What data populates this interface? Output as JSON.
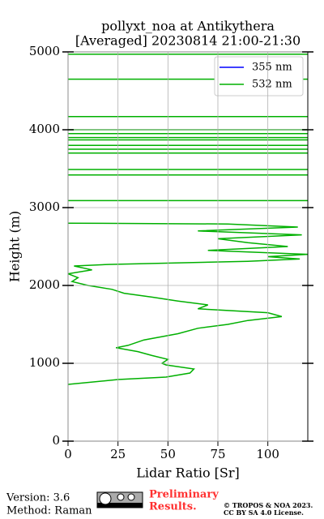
{
  "chart_data": {
    "type": "profile",
    "title": [
      "pollyxt_noa at Antikythera",
      "[Averaged] 20230814 21:00-21:30"
    ],
    "x_label": "Lidar Ratio [Sr]",
    "y_label": "Height (m)",
    "xlim": [
      0,
      120
    ],
    "xticks": [
      0,
      25,
      50,
      75,
      100
    ],
    "ylim": [
      0,
      5000
    ],
    "yticks": [
      0,
      1000,
      2000,
      3000,
      4000,
      5000
    ],
    "grid": true,
    "legend": "upper right",
    "series": [
      {
        "name": "355 nm",
        "color": "#0000ff",
        "heights": [],
        "values": []
      },
      {
        "name": "532 nm",
        "color": "#00b000",
        "heights": [
          729,
          792,
          823,
          875,
          927,
          979,
          1000,
          1050,
          1100,
          1150,
          1200,
          1230,
          1300,
          1380,
          1450,
          1500,
          1550,
          1600,
          1650,
          1700,
          1750,
          1800,
          1850,
          1900,
          1950,
          2000,
          2050,
          2100,
          2150,
          2200,
          2250,
          2270,
          2310,
          2340,
          2370,
          2400,
          2450,
          2500,
          2550,
          2600,
          2650,
          2700,
          2750,
          2790,
          2800,
          2800,
          3090,
          3090,
          3090,
          3420,
          3420,
          3420,
          3490,
          3490,
          3490,
          3700,
          3700,
          3700,
          3750,
          3750,
          3750,
          3800,
          3800,
          3800,
          3870,
          3870,
          3870,
          3900,
          3900,
          3900,
          3950,
          3950,
          3950,
          4000,
          4000,
          4000,
          4170,
          4170,
          4170,
          4650,
          4650,
          4650,
          4970,
          4970
        ],
        "values": [
          0,
          25,
          49,
          61,
          63,
          49,
          47,
          50,
          42,
          35,
          24,
          30,
          38,
          55,
          65,
          80,
          90,
          107,
          100,
          65,
          70,
          55,
          42,
          28,
          22,
          10,
          2,
          5,
          0,
          12,
          3,
          20,
          90,
          116,
          100,
          120,
          70,
          110,
          90,
          75,
          117,
          65,
          115,
          80,
          0,
          null,
          0,
          120,
          null,
          0,
          120,
          null,
          0,
          120,
          null,
          0,
          120,
          null,
          0,
          120,
          null,
          0,
          120,
          null,
          0,
          120,
          null,
          0,
          120,
          null,
          0,
          120,
          null,
          0,
          120,
          null,
          0,
          120,
          null,
          0,
          120,
          null,
          0,
          120
        ]
      }
    ]
  },
  "footer": {
    "version": "Version: 3.6",
    "method": "Method: Raman",
    "notice": [
      "Preliminary",
      "Results."
    ],
    "copyright": [
      "© TROPOS & NOA 2023.",
      "CC BY SA 4.0 License."
    ]
  }
}
